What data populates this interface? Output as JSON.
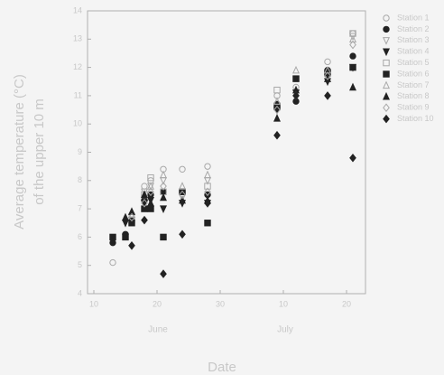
{
  "chart_data": {
    "type": "scatter",
    "ylabel": [
      "Average temperature (°C)",
      "of the upper 10 m"
    ],
    "xlabel": "Date",
    "annotations": [
      "June",
      "July"
    ],
    "x": [
      13,
      15,
      16,
      18,
      19,
      21,
      24,
      28,
      39,
      42,
      47,
      51
    ],
    "xlim": [
      9,
      53
    ],
    "xticks": [
      10,
      20,
      30,
      {
        "value": 40,
        "label": "10"
      },
      {
        "value": 50,
        "label": "20"
      }
    ],
    "ylim": [
      4,
      14
    ],
    "yticks": [
      4,
      5,
      6,
      7,
      8,
      9,
      10,
      11,
      12,
      13,
      14
    ],
    "legend": "right",
    "series": [
      {
        "name": "Station 1",
        "marker": "circle",
        "filled": false,
        "color": "#a8a8a8",
        "values": [
          5.1,
          null,
          6.8,
          7.8,
          8.0,
          8.4,
          8.4,
          8.5,
          11.0,
          11.3,
          12.2,
          13.2
        ]
      },
      {
        "name": "Station 2",
        "marker": "circle",
        "filled": true,
        "color": "#222222",
        "values": [
          5.8,
          6.1,
          6.6,
          7.3,
          7.5,
          7.6,
          7.6,
          7.5,
          10.7,
          10.8,
          11.9,
          12.4
        ]
      },
      {
        "name": "Station 3",
        "marker": "triangle-down",
        "filled": false,
        "color": "#a8a8a8",
        "values": [
          null,
          null,
          6.7,
          7.6,
          7.8,
          8.0,
          7.4,
          8.0,
          10.6,
          11.1,
          11.8,
          13.1
        ]
      },
      {
        "name": "Station 4",
        "marker": "triangle-down",
        "filled": true,
        "color": "#222222",
        "values": [
          null,
          6.5,
          6.6,
          7.2,
          7.3,
          7.0,
          7.2,
          7.2,
          10.5,
          11.1,
          11.5,
          12.0
        ]
      },
      {
        "name": "Station 5",
        "marker": "square",
        "filled": false,
        "color": "#a8a8a8",
        "values": [
          null,
          null,
          6.6,
          7.5,
          8.1,
          7.6,
          7.6,
          7.8,
          11.2,
          11.6,
          11.8,
          13.2
        ]
      },
      {
        "name": "Station 6",
        "marker": "square",
        "filled": true,
        "color": "#222222",
        "values": [
          6.0,
          6.0,
          6.5,
          7.0,
          7.0,
          6.0,
          7.6,
          6.5,
          10.6,
          11.6,
          11.8,
          12.0
        ]
      },
      {
        "name": "Station 7",
        "marker": "triangle-up",
        "filled": false,
        "color": "#a8a8a8",
        "values": [
          null,
          null,
          6.9,
          7.5,
          7.8,
          8.2,
          7.8,
          8.2,
          10.8,
          11.9,
          11.9,
          13.0
        ]
      },
      {
        "name": "Station 8",
        "marker": "triangle-up",
        "filled": true,
        "color": "#222222",
        "values": [
          null,
          6.7,
          6.9,
          7.5,
          7.2,
          7.4,
          7.3,
          7.3,
          10.2,
          11.2,
          11.6,
          11.3
        ]
      },
      {
        "name": "Station 9",
        "marker": "diamond",
        "filled": false,
        "color": "#a8a8a8",
        "values": [
          null,
          null,
          6.7,
          7.2,
          7.6,
          7.8,
          7.5,
          7.6,
          10.5,
          11.0,
          11.7,
          12.8
        ]
      },
      {
        "name": "Station 10",
        "marker": "diamond",
        "filled": true,
        "color": "#222222",
        "values": [
          null,
          null,
          5.7,
          6.6,
          7.1,
          4.7,
          6.1,
          7.2,
          9.6,
          11.0,
          11.0,
          8.8
        ]
      }
    ]
  }
}
